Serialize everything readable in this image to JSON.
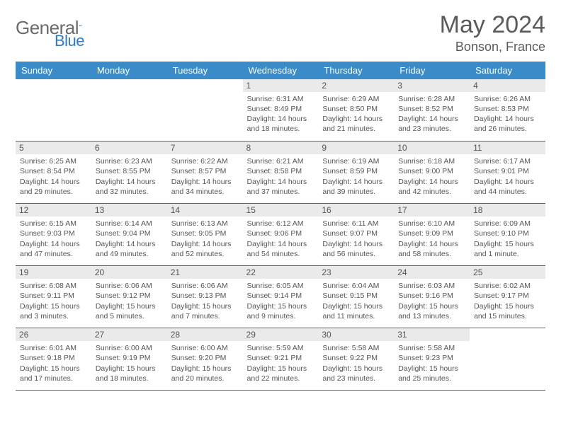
{
  "brand": {
    "name_part1": "General",
    "name_part2": "Blue",
    "swoosh_color": "#2f7abf"
  },
  "title": {
    "month_year": "May 2024",
    "location": "Bonson, France"
  },
  "colors": {
    "header_bg": "#3b8bc8",
    "row_border": "#3b6a90",
    "daynum_bg": "#eaeaea",
    "text": "#555555"
  },
  "weekdays": [
    "Sunday",
    "Monday",
    "Tuesday",
    "Wednesday",
    "Thursday",
    "Friday",
    "Saturday"
  ],
  "weeks": [
    [
      {
        "empty": true
      },
      {
        "empty": true
      },
      {
        "empty": true
      },
      {
        "day": "1",
        "sunrise": "Sunrise: 6:31 AM",
        "sunset": "Sunset: 8:49 PM",
        "daylight": "Daylight: 14 hours and 18 minutes."
      },
      {
        "day": "2",
        "sunrise": "Sunrise: 6:29 AM",
        "sunset": "Sunset: 8:50 PM",
        "daylight": "Daylight: 14 hours and 21 minutes."
      },
      {
        "day": "3",
        "sunrise": "Sunrise: 6:28 AM",
        "sunset": "Sunset: 8:52 PM",
        "daylight": "Daylight: 14 hours and 23 minutes."
      },
      {
        "day": "4",
        "sunrise": "Sunrise: 6:26 AM",
        "sunset": "Sunset: 8:53 PM",
        "daylight": "Daylight: 14 hours and 26 minutes."
      }
    ],
    [
      {
        "day": "5",
        "sunrise": "Sunrise: 6:25 AM",
        "sunset": "Sunset: 8:54 PM",
        "daylight": "Daylight: 14 hours and 29 minutes."
      },
      {
        "day": "6",
        "sunrise": "Sunrise: 6:23 AM",
        "sunset": "Sunset: 8:55 PM",
        "daylight": "Daylight: 14 hours and 32 minutes."
      },
      {
        "day": "7",
        "sunrise": "Sunrise: 6:22 AM",
        "sunset": "Sunset: 8:57 PM",
        "daylight": "Daylight: 14 hours and 34 minutes."
      },
      {
        "day": "8",
        "sunrise": "Sunrise: 6:21 AM",
        "sunset": "Sunset: 8:58 PM",
        "daylight": "Daylight: 14 hours and 37 minutes."
      },
      {
        "day": "9",
        "sunrise": "Sunrise: 6:19 AM",
        "sunset": "Sunset: 8:59 PM",
        "daylight": "Daylight: 14 hours and 39 minutes."
      },
      {
        "day": "10",
        "sunrise": "Sunrise: 6:18 AM",
        "sunset": "Sunset: 9:00 PM",
        "daylight": "Daylight: 14 hours and 42 minutes."
      },
      {
        "day": "11",
        "sunrise": "Sunrise: 6:17 AM",
        "sunset": "Sunset: 9:01 PM",
        "daylight": "Daylight: 14 hours and 44 minutes."
      }
    ],
    [
      {
        "day": "12",
        "sunrise": "Sunrise: 6:15 AM",
        "sunset": "Sunset: 9:03 PM",
        "daylight": "Daylight: 14 hours and 47 minutes."
      },
      {
        "day": "13",
        "sunrise": "Sunrise: 6:14 AM",
        "sunset": "Sunset: 9:04 PM",
        "daylight": "Daylight: 14 hours and 49 minutes."
      },
      {
        "day": "14",
        "sunrise": "Sunrise: 6:13 AM",
        "sunset": "Sunset: 9:05 PM",
        "daylight": "Daylight: 14 hours and 52 minutes."
      },
      {
        "day": "15",
        "sunrise": "Sunrise: 6:12 AM",
        "sunset": "Sunset: 9:06 PM",
        "daylight": "Daylight: 14 hours and 54 minutes."
      },
      {
        "day": "16",
        "sunrise": "Sunrise: 6:11 AM",
        "sunset": "Sunset: 9:07 PM",
        "daylight": "Daylight: 14 hours and 56 minutes."
      },
      {
        "day": "17",
        "sunrise": "Sunrise: 6:10 AM",
        "sunset": "Sunset: 9:09 PM",
        "daylight": "Daylight: 14 hours and 58 minutes."
      },
      {
        "day": "18",
        "sunrise": "Sunrise: 6:09 AM",
        "sunset": "Sunset: 9:10 PM",
        "daylight": "Daylight: 15 hours and 1 minute."
      }
    ],
    [
      {
        "day": "19",
        "sunrise": "Sunrise: 6:08 AM",
        "sunset": "Sunset: 9:11 PM",
        "daylight": "Daylight: 15 hours and 3 minutes."
      },
      {
        "day": "20",
        "sunrise": "Sunrise: 6:06 AM",
        "sunset": "Sunset: 9:12 PM",
        "daylight": "Daylight: 15 hours and 5 minutes."
      },
      {
        "day": "21",
        "sunrise": "Sunrise: 6:06 AM",
        "sunset": "Sunset: 9:13 PM",
        "daylight": "Daylight: 15 hours and 7 minutes."
      },
      {
        "day": "22",
        "sunrise": "Sunrise: 6:05 AM",
        "sunset": "Sunset: 9:14 PM",
        "daylight": "Daylight: 15 hours and 9 minutes."
      },
      {
        "day": "23",
        "sunrise": "Sunrise: 6:04 AM",
        "sunset": "Sunset: 9:15 PM",
        "daylight": "Daylight: 15 hours and 11 minutes."
      },
      {
        "day": "24",
        "sunrise": "Sunrise: 6:03 AM",
        "sunset": "Sunset: 9:16 PM",
        "daylight": "Daylight: 15 hours and 13 minutes."
      },
      {
        "day": "25",
        "sunrise": "Sunrise: 6:02 AM",
        "sunset": "Sunset: 9:17 PM",
        "daylight": "Daylight: 15 hours and 15 minutes."
      }
    ],
    [
      {
        "day": "26",
        "sunrise": "Sunrise: 6:01 AM",
        "sunset": "Sunset: 9:18 PM",
        "daylight": "Daylight: 15 hours and 17 minutes."
      },
      {
        "day": "27",
        "sunrise": "Sunrise: 6:00 AM",
        "sunset": "Sunset: 9:19 PM",
        "daylight": "Daylight: 15 hours and 18 minutes."
      },
      {
        "day": "28",
        "sunrise": "Sunrise: 6:00 AM",
        "sunset": "Sunset: 9:20 PM",
        "daylight": "Daylight: 15 hours and 20 minutes."
      },
      {
        "day": "29",
        "sunrise": "Sunrise: 5:59 AM",
        "sunset": "Sunset: 9:21 PM",
        "daylight": "Daylight: 15 hours and 22 minutes."
      },
      {
        "day": "30",
        "sunrise": "Sunrise: 5:58 AM",
        "sunset": "Sunset: 9:22 PM",
        "daylight": "Daylight: 15 hours and 23 minutes."
      },
      {
        "day": "31",
        "sunrise": "Sunrise: 5:58 AM",
        "sunset": "Sunset: 9:23 PM",
        "daylight": "Daylight: 15 hours and 25 minutes."
      },
      {
        "empty": true
      }
    ]
  ]
}
